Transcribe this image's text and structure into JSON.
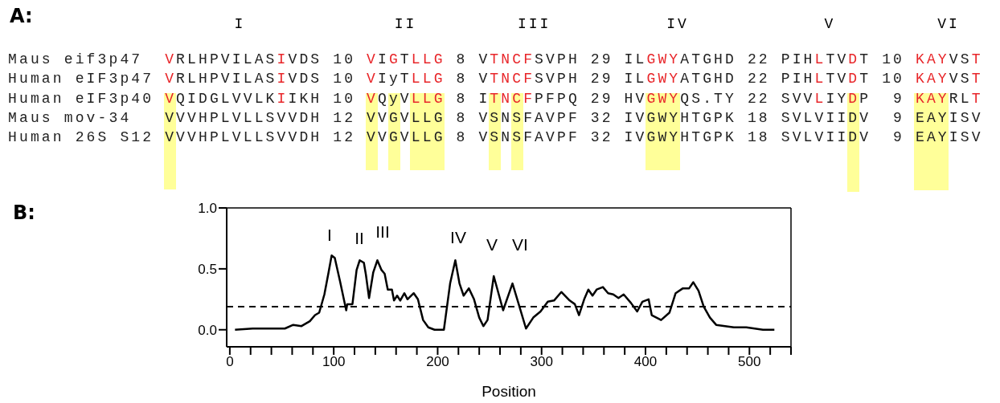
{
  "chart_data": [
    {
      "type": "other",
      "title": "A:",
      "categories": [
        "I",
        "II",
        "III",
        "IV",
        "V",
        "VI"
      ],
      "annotations": [
        "Maus eif3p47  VRLHPVILASIVDS 10 VIGTLLG 8 VTNCFSVPH 29 ILGWYATGHD 22 PIHLTVDT 10 KAYVST",
        "Human eIF3p47 VRLHPVILASIVDS 10 VIyTLLG 8 VTNCFSVPH 29 ILGWYATGHD 22 PIHLTVDT 10 KAYVST",
        "Human eIF3p40 VQIDGLVVLKIIKH 10 VQyVLLG 8 ITNCFPFPQ 29 HVGWYQS.TY 22 SVVLIYDP  9 KAYRLT",
        "Maus mov-34   VVVHPLVLLSVVDH 12 VVGVLLG 8 VSNSFAVPF 32 IVGWYHTGPK 18 SVLVIIDV  9 EAYISV",
        "Human 26S S12 VVVHPLVLLSVVDH 12 VVGVLLG 8 VSNSFAVPF 32 IVGWYHTGPK 18 SVLVIIDV  9 EAYISV"
      ]
    },
    {
      "type": "line",
      "xlabel": "Position",
      "color": "#000000",
      "marker": "none",
      "line_style": "solid",
      "x": [
        5,
        22,
        53,
        61,
        69,
        77,
        82,
        86,
        91,
        95,
        98,
        101,
        106,
        112,
        113,
        118,
        122,
        125,
        129,
        131,
        134,
        138,
        142,
        146,
        149,
        152,
        156,
        158,
        161,
        164,
        168,
        171,
        177,
        181,
        186,
        191,
        197,
        206,
        212,
        217,
        221,
        225,
        230,
        235,
        240,
        244,
        248,
        252,
        254,
        263,
        272,
        278,
        285,
        292,
        299,
        306,
        312,
        319,
        327,
        332,
        336,
        341,
        345,
        349,
        353,
        359,
        364,
        369,
        374,
        379,
        386,
        392,
        397,
        403,
        406,
        415,
        423,
        429,
        436,
        442,
        446,
        451,
        456,
        462,
        468,
        485,
        497,
        513,
        524
      ],
      "values": [
        0,
        0.01,
        0.01,
        0.04,
        0.03,
        0.07,
        0.12,
        0.14,
        0.29,
        0.47,
        0.61,
        0.59,
        0.4,
        0.16,
        0.21,
        0.21,
        0.49,
        0.57,
        0.55,
        0.45,
        0.26,
        0.47,
        0.57,
        0.49,
        0.46,
        0.33,
        0.33,
        0.24,
        0.28,
        0.24,
        0.3,
        0.25,
        0.3,
        0.25,
        0.08,
        0.02,
        0,
        0,
        0.38,
        0.57,
        0.38,
        0.28,
        0.34,
        0.25,
        0.1,
        0.03,
        0.08,
        0.32,
        0.44,
        0.16,
        0.38,
        0.21,
        0.01,
        0.1,
        0.15,
        0.23,
        0.24,
        0.31,
        0.24,
        0.21,
        0.12,
        0.25,
        0.33,
        0.28,
        0.33,
        0.35,
        0.3,
        0.29,
        0.26,
        0.29,
        0.22,
        0.15,
        0.23,
        0.25,
        0.12,
        0.08,
        0.14,
        0.3,
        0.34,
        0.34,
        0.39,
        0.32,
        0.19,
        0.1,
        0.04,
        0.02,
        0.02,
        0,
        0
      ],
      "xlim": [
        -3,
        540
      ],
      "xticks": [
        0,
        {
          "value": 20,
          "label": null
        },
        {
          "value": 40,
          "label": null
        },
        {
          "value": 60,
          "label": null
        },
        {
          "value": 80,
          "label": null
        },
        100,
        {
          "value": 120,
          "label": null
        },
        {
          "value": 140,
          "label": null
        },
        {
          "value": 160,
          "label": null
        },
        {
          "value": 180,
          "label": null
        },
        200,
        {
          "value": 220,
          "label": null
        },
        {
          "value": 240,
          "label": null
        },
        {
          "value": 260,
          "label": null
        },
        {
          "value": 280,
          "label": null
        },
        300,
        {
          "value": 320,
          "label": null
        },
        {
          "value": 340,
          "label": null
        },
        {
          "value": 360,
          "label": null
        },
        {
          "value": 380,
          "label": null
        },
        400,
        {
          "value": 420,
          "label": null
        },
        {
          "value": 440,
          "label": null
        },
        {
          "value": 460,
          "label": null
        },
        {
          "value": 480,
          "label": null
        },
        500,
        {
          "value": 520,
          "label": null
        },
        {
          "value": 540,
          "label": null
        }
      ],
      "ylim": [
        -0.14,
        1.0
      ],
      "yticks": [
        {
          "value": 0,
          "label": "0.0"
        },
        {
          "value": 0.5,
          "label": "0.5"
        },
        {
          "value": 1.0,
          "label": "1.0"
        }
      ],
      "ref_lines": [
        {
          "axis": "y",
          "value": 0.19,
          "line_style": "dashed",
          "color": "#000000"
        }
      ],
      "annotations": [
        "B:",
        "I",
        "II",
        "III",
        "IV",
        "V",
        "VI"
      ]
    }
  ]
}
